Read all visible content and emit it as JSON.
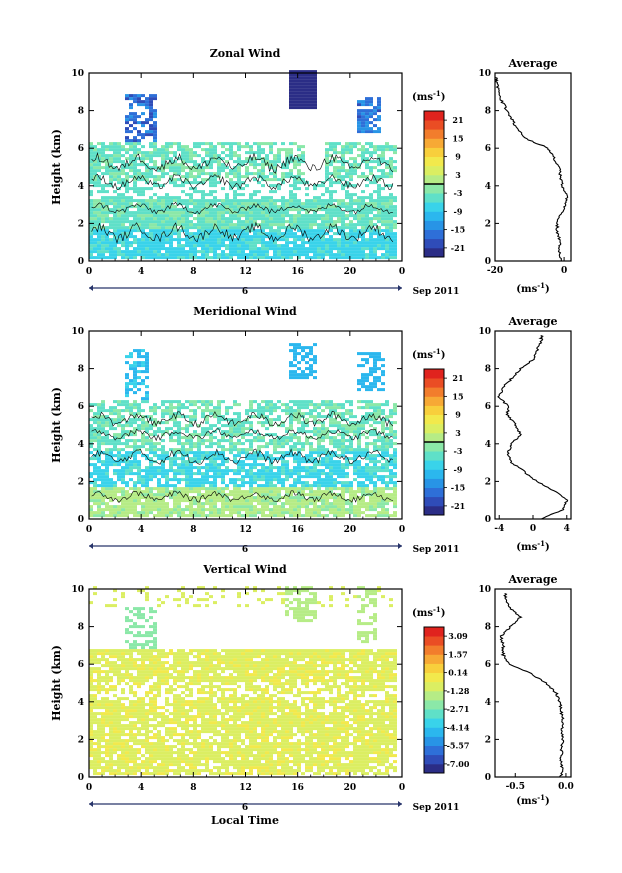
{
  "colors": {
    "scale": [
      "#2b2d86",
      "#2f4cb8",
      "#2e6fd8",
      "#2894e6",
      "#2bb7ee",
      "#39d3ea",
      "#5fe0c8",
      "#8be8a8",
      "#b6ec86",
      "#dbee62",
      "#f2e94c",
      "#f8cf3c",
      "#f7a935",
      "#f27d2c",
      "#ea4d24",
      "#e0231e"
    ]
  },
  "chart_data": [
    {
      "type": "heatmap",
      "title": "Zonal Wind",
      "ylabel": "Height (km)",
      "xlabel": "",
      "x_ticks": [
        "0",
        "4",
        "8",
        "12",
        "16",
        "20",
        "0"
      ],
      "y_ticks": [
        "0",
        "2",
        "4",
        "6",
        "8",
        "10"
      ],
      "xlim": [
        0,
        24
      ],
      "ylim": [
        0,
        10
      ],
      "day_label": "6",
      "date_label": "Sep 2011",
      "colorbar": {
        "unit": "(ms-1)",
        "unit_text": "(ms",
        "unit_exp": "-1",
        "unit_close": ")",
        "labels": [
          "21",
          "15",
          "9",
          "3",
          "-3",
          "-9",
          "-15",
          "-21"
        ],
        "range": [
          -24,
          24
        ],
        "contour_level": 0
      },
      "avg": {
        "title": "Average",
        "xlabel": "(ms-1)",
        "unit_text": "(ms",
        "unit_exp": "-1",
        "unit_close": ")",
        "x_ticks": [
          "-20",
          "0"
        ],
        "xlim": [
          -20,
          2
        ],
        "heights": [
          0.0,
          0.5,
          1.0,
          1.5,
          2.0,
          2.5,
          3.0,
          3.5,
          4.0,
          4.5,
          5.0,
          5.5,
          6.0,
          6.5,
          7.0,
          7.5,
          8.0,
          8.5,
          9.0,
          9.5
        ],
        "values": [
          -0.5,
          -1.5,
          -1.0,
          -2.0,
          -2.0,
          -1.0,
          0.5,
          1.0,
          -0.5,
          -1.0,
          -1.5,
          -3.0,
          -4.5,
          -11.0,
          -13.5,
          -15.0,
          -16.5,
          -18.0,
          -19.0,
          -19.5
        ]
      }
    },
    {
      "type": "heatmap",
      "title": "Meridional Wind",
      "ylabel": "Height (km)",
      "xlabel": "",
      "x_ticks": [
        "0",
        "4",
        "8",
        "12",
        "16",
        "20",
        "0"
      ],
      "y_ticks": [
        "0",
        "2",
        "4",
        "6",
        "8",
        "10"
      ],
      "xlim": [
        0,
        24
      ],
      "ylim": [
        0,
        10
      ],
      "day_label": "6",
      "date_label": "Sep 2011",
      "colorbar": {
        "unit": "(ms-1)",
        "unit_text": "(ms",
        "unit_exp": "-1",
        "unit_close": ")",
        "labels": [
          "21",
          "15",
          "9",
          "3",
          "-3",
          "-9",
          "-15",
          "-21"
        ],
        "range": [
          -24,
          24
        ],
        "contour_level": 0
      },
      "avg": {
        "title": "Average",
        "xlabel": "(ms-1)",
        "unit_text": "(ms",
        "unit_exp": "-1",
        "unit_close": ")",
        "x_ticks": [
          "-4",
          "0",
          "4"
        ],
        "xlim": [
          -4.5,
          4.5
        ],
        "heights": [
          0.0,
          0.5,
          1.0,
          1.5,
          2.0,
          2.5,
          3.0,
          3.5,
          4.0,
          4.5,
          5.0,
          5.5,
          6.0,
          6.5,
          7.0,
          7.5,
          8.0,
          8.5,
          9.0,
          9.5
        ],
        "values": [
          1.0,
          3.5,
          4.0,
          2.5,
          0.5,
          -1.0,
          -2.5,
          -3.0,
          -2.5,
          -1.5,
          -2.0,
          -3.0,
          -3.0,
          -4.0,
          -3.5,
          -2.5,
          -1.5,
          0.0,
          0.5,
          1.0
        ]
      }
    },
    {
      "type": "heatmap",
      "title": "Vertical Wind",
      "ylabel": "Height (km)",
      "xlabel": "Local Time",
      "x_ticks": [
        "0",
        "4",
        "8",
        "12",
        "16",
        "20",
        "0"
      ],
      "y_ticks": [
        "0",
        "2",
        "4",
        "6",
        "8",
        "10"
      ],
      "xlim": [
        0,
        24
      ],
      "ylim": [
        0,
        10
      ],
      "day_label": "6",
      "date_label": "Sep 2011",
      "colorbar": {
        "unit": "(ms-1)",
        "unit_text": "(ms",
        "unit_exp": "-1",
        "unit_close": ")",
        "labels": [
          "3.09",
          "1.57",
          "0.14",
          "-1.28",
          "-2.71",
          "-4.14",
          "-5.57",
          "-7.00"
        ],
        "range": [
          -7.71,
          3.8
        ],
        "contour_level": null
      },
      "avg": {
        "title": "Average",
        "xlabel": "(ms-1)",
        "unit_text": "(ms",
        "unit_exp": "-1",
        "unit_close": ")",
        "x_ticks": [
          "-0.5",
          "0.0"
        ],
        "xlim": [
          -0.7,
          0.05
        ],
        "heights": [
          0.0,
          0.5,
          1.0,
          1.5,
          2.0,
          2.5,
          3.0,
          3.5,
          4.0,
          4.5,
          5.0,
          5.5,
          6.0,
          6.5,
          7.0,
          7.5,
          8.0,
          8.5,
          9.0,
          9.5
        ],
        "values": [
          -0.05,
          -0.04,
          -0.05,
          -0.04,
          -0.03,
          -0.04,
          -0.03,
          -0.05,
          -0.06,
          -0.1,
          -0.2,
          -0.35,
          -0.55,
          -0.62,
          -0.62,
          -0.64,
          -0.55,
          -0.45,
          -0.55,
          -0.6
        ]
      }
    }
  ]
}
